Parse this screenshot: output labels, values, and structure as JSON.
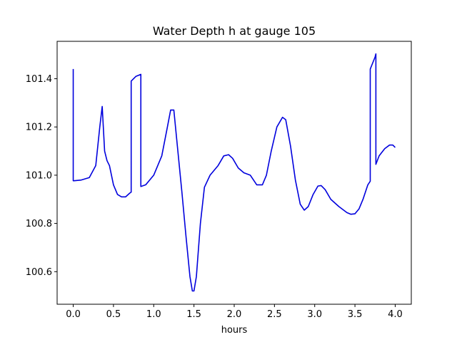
{
  "chart_data": {
    "type": "line",
    "title": "Water Depth h at gauge 105",
    "xlabel": "hours",
    "ylabel": "",
    "xlim": [
      -0.2,
      4.2
    ],
    "ylim": [
      100.465,
      101.555
    ],
    "xticks": [
      0.0,
      0.5,
      1.0,
      1.5,
      2.0,
      2.5,
      3.0,
      3.5,
      4.0
    ],
    "xtick_labels": [
      "0.0",
      "0.5",
      "1.0",
      "1.5",
      "2.0",
      "2.5",
      "3.0",
      "3.5",
      "4.0"
    ],
    "yticks": [
      100.6,
      100.8,
      101.0,
      101.2,
      101.4
    ],
    "ytick_labels": [
      "100.6",
      "100.8",
      "101.0",
      "101.2",
      "101.4"
    ],
    "grid": false,
    "line_color": "#0000dd",
    "series": [
      {
        "name": "",
        "x": [
          0.0,
          0.0,
          0.01,
          0.1,
          0.2,
          0.28,
          0.33,
          0.36,
          0.39,
          0.42,
          0.45,
          0.5,
          0.55,
          0.6,
          0.65,
          0.7,
          0.72,
          0.72,
          0.78,
          0.84,
          0.84,
          0.9,
          1.0,
          1.1,
          1.17,
          1.21,
          1.25,
          1.3,
          1.35,
          1.4,
          1.45,
          1.48,
          1.5,
          1.53,
          1.58,
          1.63,
          1.7,
          1.8,
          1.87,
          1.93,
          1.98,
          2.05,
          2.12,
          2.2,
          2.28,
          2.35,
          2.4,
          2.46,
          2.53,
          2.6,
          2.64,
          2.7,
          2.76,
          2.82,
          2.87,
          2.92,
          2.98,
          3.04,
          3.08,
          3.13,
          3.2,
          3.3,
          3.4,
          3.45,
          3.5,
          3.55,
          3.6,
          3.66,
          3.69,
          3.69,
          3.75,
          3.76,
          3.76,
          3.8,
          3.87,
          3.93,
          3.97,
          4.0
        ],
        "y": [
          101.44,
          100.977,
          100.977,
          100.98,
          100.99,
          101.04,
          101.2,
          101.285,
          101.1,
          101.06,
          101.04,
          100.96,
          100.92,
          100.91,
          100.91,
          100.925,
          100.93,
          101.39,
          101.41,
          101.418,
          100.953,
          100.96,
          101.0,
          101.08,
          101.2,
          101.27,
          101.27,
          101.1,
          100.93,
          100.75,
          100.58,
          100.52,
          100.52,
          100.58,
          100.8,
          100.95,
          101.0,
          101.04,
          101.08,
          101.085,
          101.07,
          101.03,
          101.01,
          101.0,
          100.96,
          100.96,
          101.0,
          101.1,
          101.2,
          101.24,
          101.23,
          101.12,
          100.98,
          100.88,
          100.855,
          100.87,
          100.92,
          100.955,
          100.957,
          100.94,
          100.9,
          100.87,
          100.845,
          100.838,
          100.84,
          100.86,
          100.9,
          100.96,
          100.975,
          101.44,
          101.49,
          101.503,
          101.045,
          101.08,
          101.11,
          101.125,
          101.125,
          101.115
        ]
      }
    ]
  }
}
